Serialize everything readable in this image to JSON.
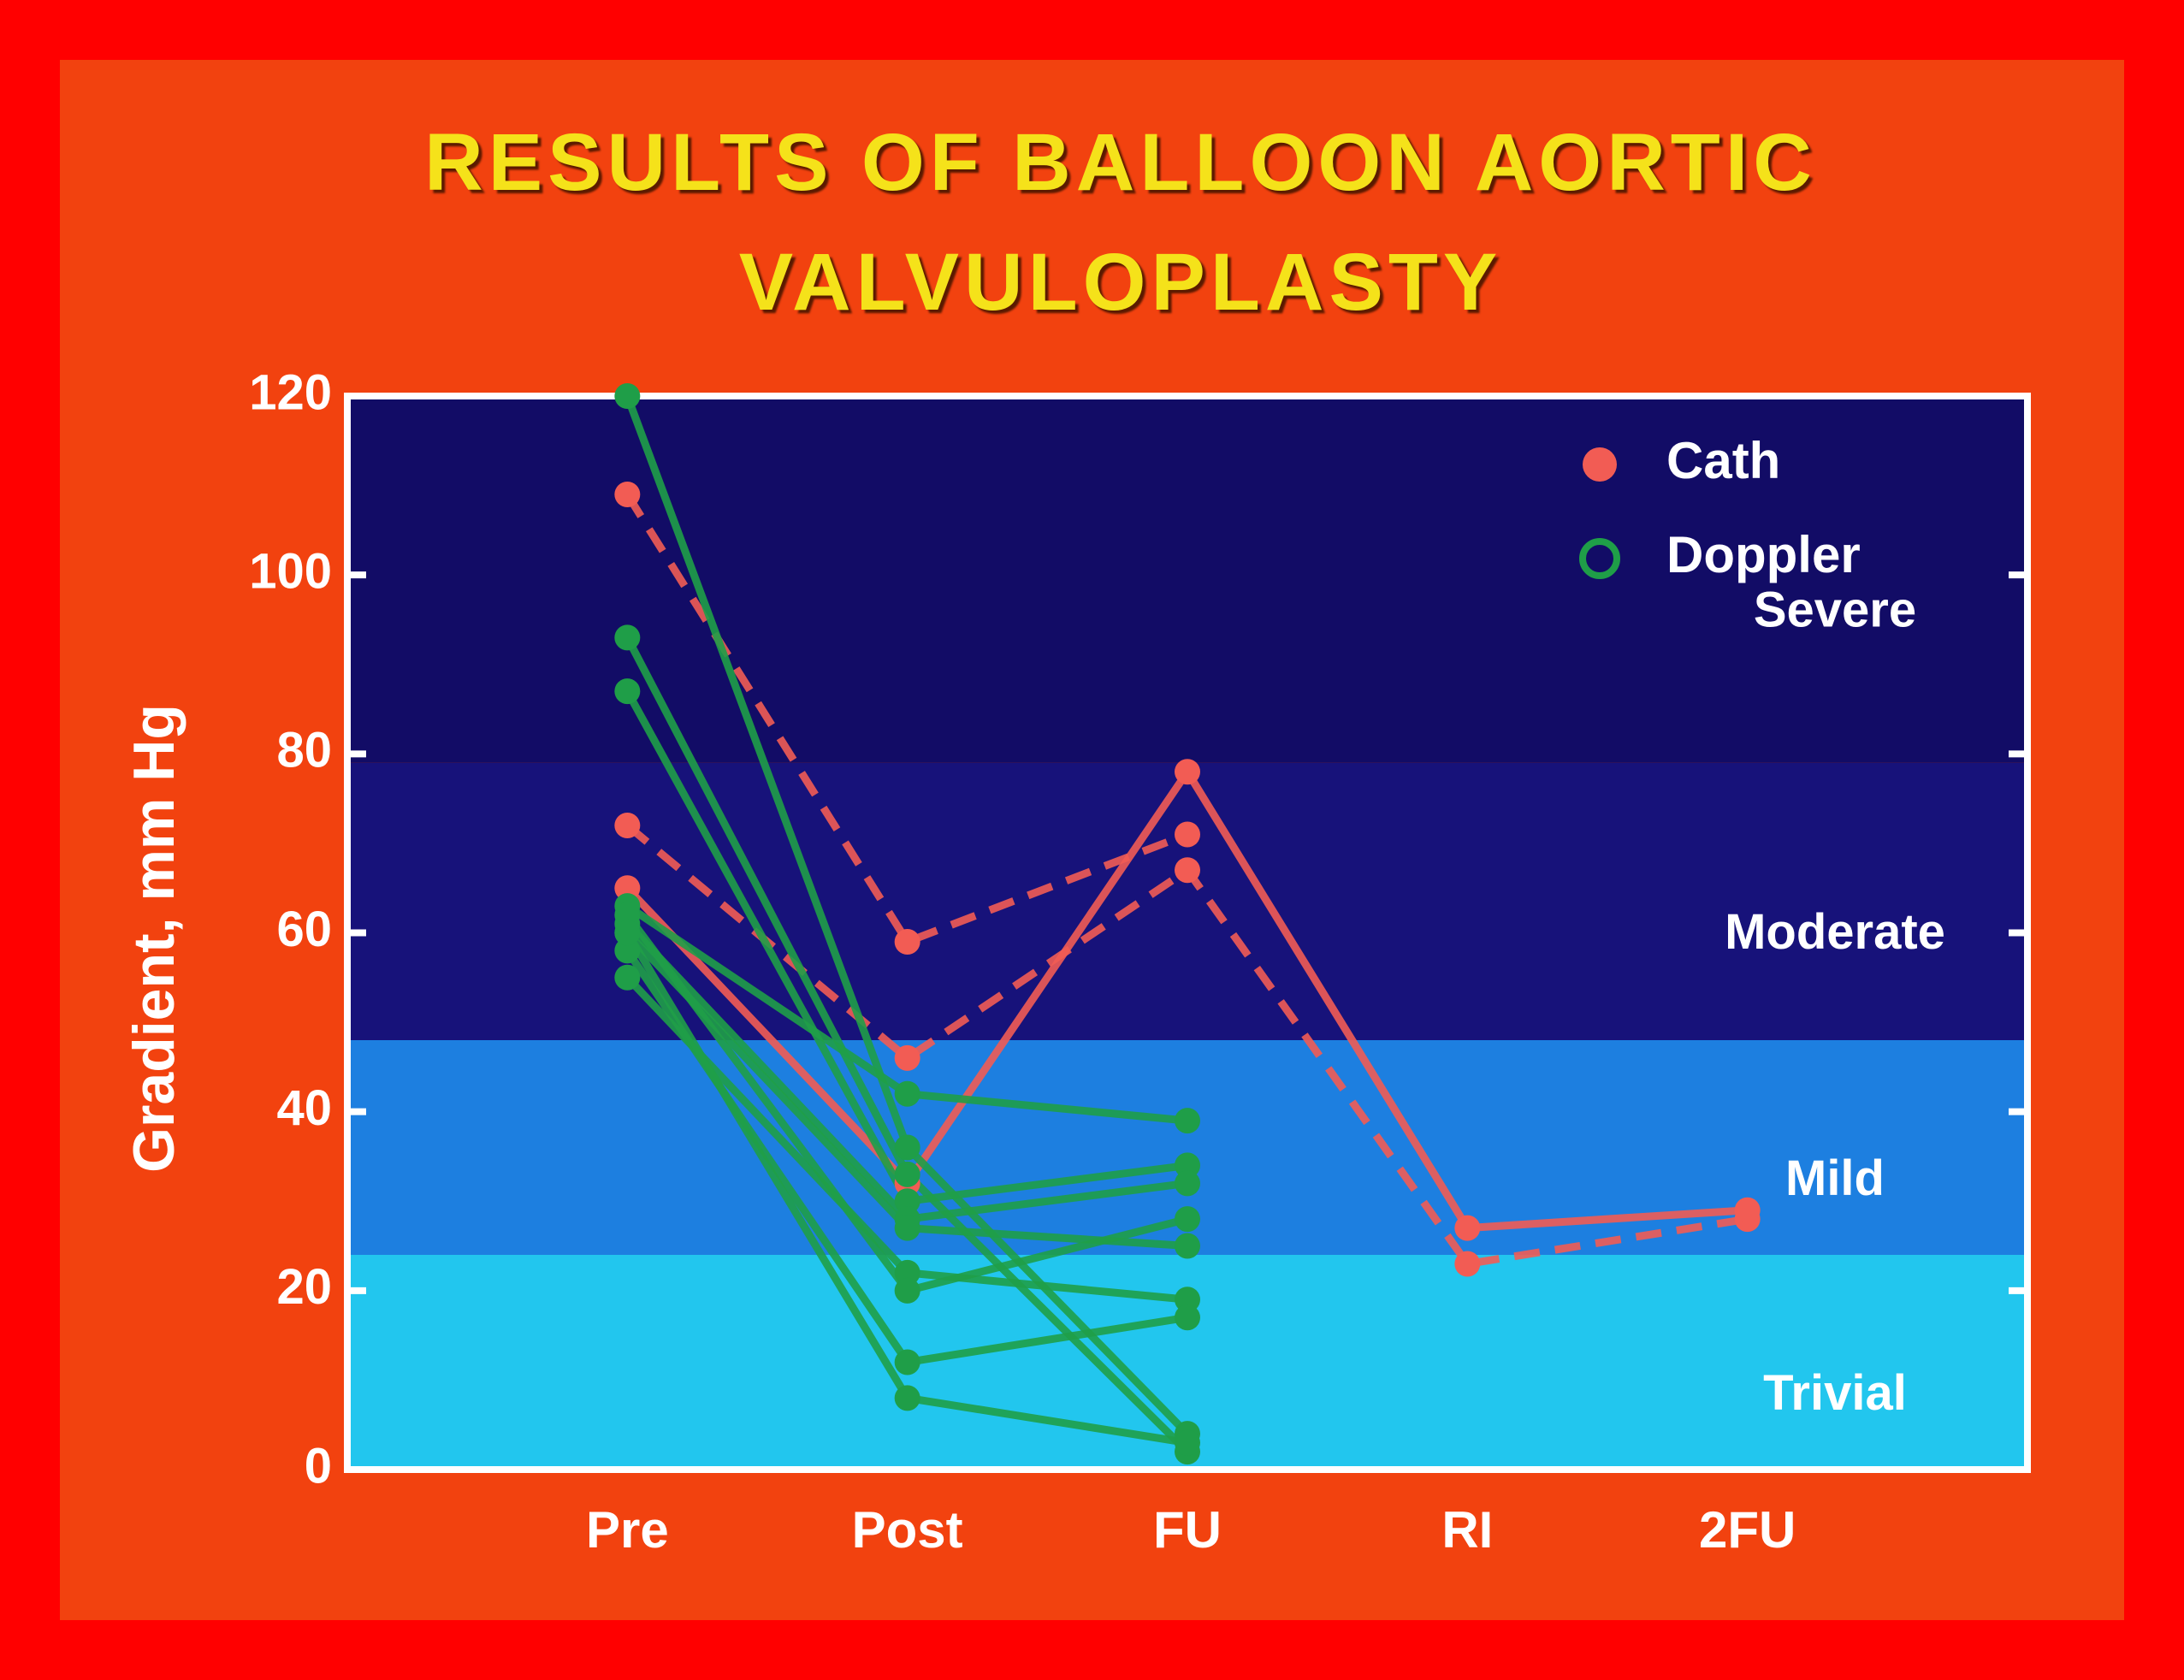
{
  "chart_data": {
    "type": "line",
    "title": "RESULTS OF BALLOON AORTIC VALVULOPLASTY",
    "y_label": "Gradient, mm Hg",
    "categories": [
      "Pre",
      "Post",
      "FU",
      "RI",
      "2FU"
    ],
    "ylim": [
      0,
      120
    ],
    "yticks": [
      0,
      20,
      40,
      60,
      80,
      100,
      120
    ],
    "grid": false,
    "legend": "top-right",
    "bands": [
      {
        "label": "Trivial",
        "from": 0,
        "to": 24,
        "color": "#22c6ee"
      },
      {
        "label": "Mild",
        "from": 24,
        "to": 48,
        "color": "#1d7fe0"
      },
      {
        "label": "Moderate",
        "from": 48,
        "to": 79,
        "color": "#17127a"
      },
      {
        "label": "Severe",
        "from": 79,
        "to": 120,
        "color": "#120c66"
      }
    ],
    "series": [
      {
        "name": "Cath",
        "color": "#f25c54",
        "legend_marker": "filled",
        "lines": [
          {
            "values": [
              109,
              59,
              71,
              null,
              null
            ],
            "dashed": true
          },
          {
            "values": [
              72,
              46,
              67,
              23,
              28
            ],
            "dashed": true
          },
          {
            "values": [
              65,
              32,
              78,
              27,
              29
            ],
            "dashed": false
          }
        ]
      },
      {
        "name": "Doppler",
        "color": "#1f9e48",
        "legend_marker": "open",
        "lines": [
          {
            "values": [
              120,
              36,
              4,
              null,
              null
            ],
            "dashed": false
          },
          {
            "values": [
              93,
              33,
              2,
              null,
              null
            ],
            "dashed": false
          },
          {
            "values": [
              87,
              30,
              34,
              null,
              null
            ],
            "dashed": false
          },
          {
            "values": [
              63,
              42,
              39,
              null,
              null
            ],
            "dashed": false
          },
          {
            "values": [
              61,
              28,
              32,
              null,
              null
            ],
            "dashed": false
          },
          {
            "values": [
              60,
              27,
              25,
              null,
              null
            ],
            "dashed": false
          },
          {
            "values": [
              55,
              22,
              19,
              null,
              null
            ],
            "dashed": false
          },
          {
            "values": [
              62,
              20,
              28,
              null,
              null
            ],
            "dashed": false
          },
          {
            "values": [
              58,
              12,
              17,
              null,
              null
            ],
            "dashed": false
          },
          {
            "values": [
              60,
              8,
              3,
              null,
              null
            ],
            "dashed": false
          }
        ]
      }
    ]
  }
}
